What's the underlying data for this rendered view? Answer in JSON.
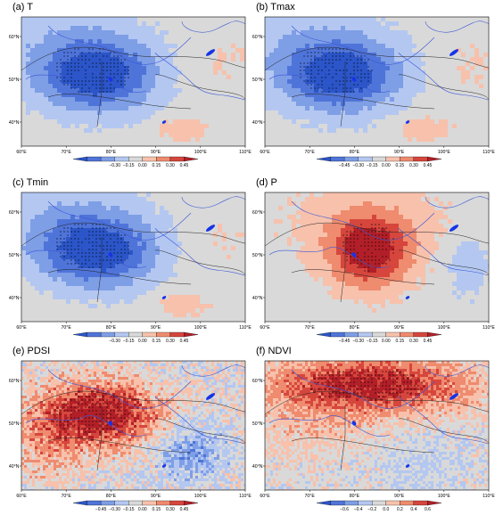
{
  "figure": {
    "panels": [
      {
        "title": "(a) T",
        "field": "negative_west",
        "colorbar": [
          "−0.30",
          "−0.15",
          "0.00",
          "0.15",
          "0.30",
          "0.45"
        ],
        "colors": [
          "#2b55c8",
          "#4f74d9",
          "#7e9ee6",
          "#b3c7f1",
          "#d9d9d9",
          "#f7c1ac",
          "#ef8b6e",
          "#d6463d",
          "#b21f28"
        ]
      },
      {
        "title": "(b) Tmax",
        "field": "negative_west",
        "colorbar": [
          "−0.45",
          "−0.30",
          "−0.15",
          "0.00",
          "0.15",
          "0.30",
          "0.45"
        ],
        "colors": [
          "#2b55c8",
          "#4f74d9",
          "#7e9ee6",
          "#b3c7f1",
          "#d9d9d9",
          "#f7c1ac",
          "#ef8b6e",
          "#d6463d",
          "#b21f28"
        ]
      },
      {
        "title": "(c) Tmin",
        "field": "negative_west",
        "colorbar": [
          "−0.30",
          "−0.15",
          "0.00",
          "0.15",
          "0.30",
          "0.45"
        ],
        "colors": [
          "#2b55c8",
          "#4f74d9",
          "#7e9ee6",
          "#b3c7f1",
          "#d9d9d9",
          "#f7c1ac",
          "#ef8b6e",
          "#d6463d",
          "#b21f28"
        ]
      },
      {
        "title": "(d) P",
        "field": "positive_center",
        "colorbar": [
          "−0.45",
          "−0.30",
          "−0.15",
          "0.00",
          "0.15",
          "0.30",
          "0.45"
        ],
        "colors": [
          "#2b55c8",
          "#4f74d9",
          "#7e9ee6",
          "#b3c7f1",
          "#d9d9d9",
          "#f7c1ac",
          "#ef8b6e",
          "#d6463d",
          "#b21f28"
        ]
      },
      {
        "title": "(e) PDSI",
        "field": "positive_center_strong",
        "colorbar": [
          "−0.45",
          "−0.30",
          "−0.15",
          "0.00",
          "0.15",
          "0.30",
          "0.45"
        ],
        "colors": [
          "#2b55c8",
          "#4f74d9",
          "#7e9ee6",
          "#b3c7f1",
          "#d9d9d9",
          "#f7c1ac",
          "#ef8b6e",
          "#d6463d",
          "#b21f28"
        ]
      },
      {
        "title": "(f) NDVI",
        "field": "positive_north",
        "colorbar": [
          "−0.6",
          "−0.4",
          "−0.2",
          "0.0",
          "0.2",
          "0.4",
          "0.6"
        ],
        "colors": [
          "#2b55c8",
          "#4f74d9",
          "#7e9ee6",
          "#b3c7f1",
          "#d9d9d9",
          "#f7c1ac",
          "#ef8b6e",
          "#d6463d",
          "#b21f28"
        ]
      }
    ],
    "lon_ticks": [
      "60°E",
      "70°E",
      "80°E",
      "90°E",
      "100°E",
      "110°E"
    ],
    "lat_ticks": [
      "60°N",
      "50°N",
      "40°N"
    ]
  }
}
